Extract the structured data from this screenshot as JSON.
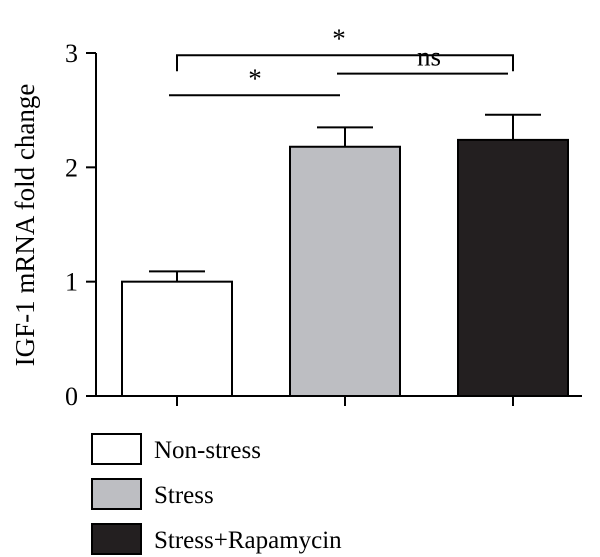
{
  "chart_data": {
    "type": "bar",
    "ylabel": "IGF-1 mRNA fold change",
    "ylim": [
      0,
      3
    ],
    "yticks": [
      "0",
      "1",
      "2",
      "3"
    ],
    "categories": [
      "Non-stress",
      "Stress",
      "Stress+Rapamycin"
    ],
    "values": [
      1.0,
      2.18,
      2.24
    ],
    "errors": [
      0.09,
      0.17,
      0.22
    ],
    "colors": [
      "#ffffff",
      "#bdbec2",
      "#231f20"
    ],
    "legend": {
      "placement": "bottom-left",
      "entries": [
        "Non-stress",
        "Stress",
        "Stress+Rapamycin"
      ]
    },
    "significance": [
      {
        "from": 0,
        "to": 2,
        "label": "*",
        "y": 2.98,
        "style": "bracket"
      },
      {
        "from": 1,
        "to": 2,
        "label": "ns",
        "y": 2.82,
        "style": "line"
      },
      {
        "from": 0,
        "to": 1,
        "label": "*",
        "y": 2.63,
        "style": "line"
      }
    ]
  }
}
